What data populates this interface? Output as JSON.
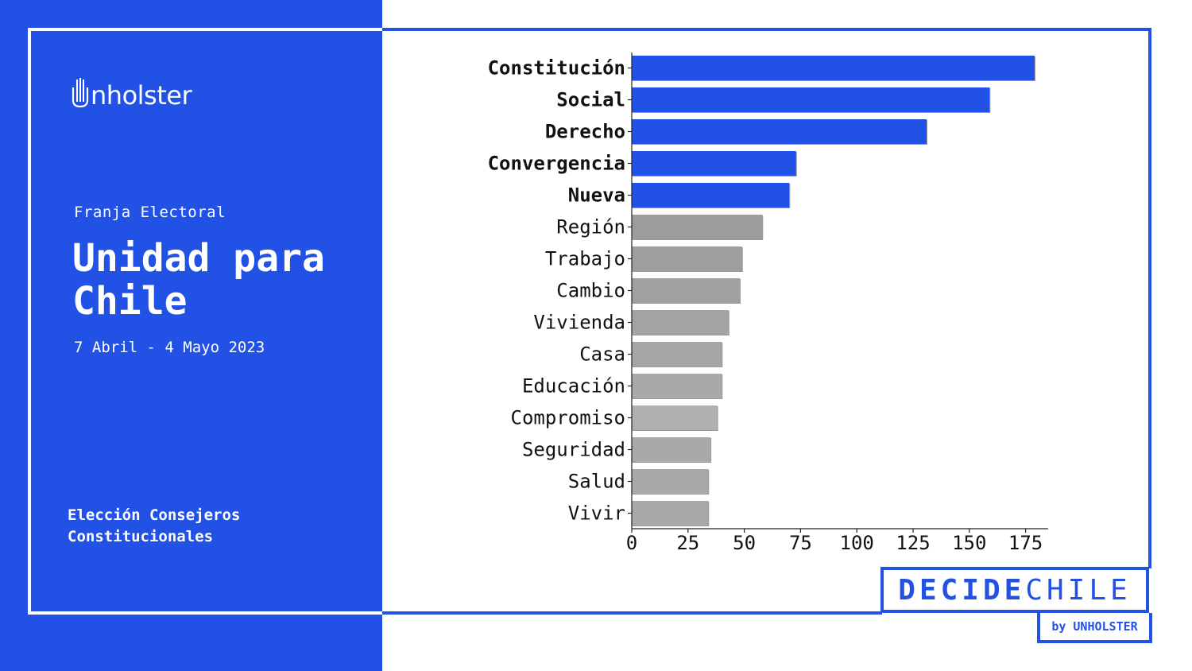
{
  "header": {
    "logo_text": "nholster",
    "subtitle": "Franja Electoral",
    "title": "Unidad para Chile",
    "dates": "7 Abril - 4 Mayo 2023"
  },
  "footer": {
    "line1": "Elección Consejeros",
    "line2": "Constitucionales",
    "brand_bold": "DECIDE",
    "brand_thin": "CHILE",
    "byline": "by UNHOLSTER"
  },
  "colors": {
    "accent": "#2251e6",
    "highlight_bar": "#2251e6",
    "other_bar": "#a0a0a0"
  },
  "chart_data": {
    "type": "bar",
    "orientation": "horizontal",
    "categories": [
      "Constitución",
      "Social",
      "Derecho",
      "Convergencia",
      "Nueva",
      "Región",
      "Trabajo",
      "Cambio",
      "Vivienda",
      "Casa",
      "Educación",
      "Compromiso",
      "Seguridad",
      "Salud",
      "Vivir"
    ],
    "values": [
      179,
      159,
      131,
      73,
      70,
      58,
      49,
      48,
      43,
      40,
      40,
      38,
      35,
      34,
      34
    ],
    "highlighted": [
      true,
      true,
      true,
      true,
      true,
      false,
      false,
      false,
      false,
      false,
      false,
      false,
      false,
      false,
      false
    ],
    "bar_colors": [
      "#2251e6",
      "#2251e6",
      "#2251e6",
      "#2251e6",
      "#2251e6",
      "#9c9c9c",
      "#9e9e9e",
      "#a0a0a0",
      "#a3a3a3",
      "#a6a6a6",
      "#a9a9a9",
      "#b0b0b0",
      "#a9a9a9",
      "#a9a9a9",
      "#a9a9a9"
    ],
    "xticks": [
      0,
      25,
      50,
      75,
      100,
      125,
      150,
      175
    ],
    "xlim": [
      0,
      185
    ],
    "grid": false,
    "title": "",
    "xlabel": "",
    "ylabel": ""
  }
}
